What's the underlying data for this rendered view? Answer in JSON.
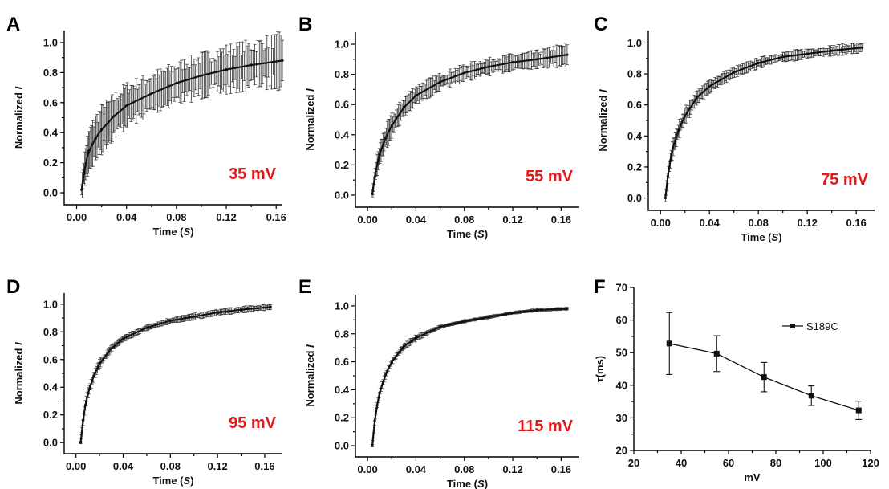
{
  "colors": {
    "axis": "#000000",
    "trace": "#111111",
    "errorbar": "#333333",
    "voltage_label": "#e0191b"
  },
  "chart_data": [
    {
      "panel": "A",
      "type": "line",
      "annotation": "35 mV",
      "xlabel_prefix": "Time (",
      "xlabel_unit": "S",
      "xlabel_suffix": ")",
      "ylabel_prefix": "Normalized ",
      "ylabel_var": "I",
      "xlim": [
        -0.01,
        0.165
      ],
      "ylim": [
        -0.08,
        1.08
      ],
      "xticks": [
        0.0,
        0.04,
        0.08,
        0.12,
        0.16
      ],
      "xticklabels": [
        "0.00",
        "0.04",
        "0.08",
        "0.12",
        "0.16"
      ],
      "yticks": [
        0.0,
        0.2,
        0.4,
        0.6,
        0.8,
        1.0
      ],
      "yticklabels": [
        "0.0",
        "0.2",
        "0.4",
        "0.6",
        "0.8",
        "1.0"
      ],
      "x": [
        0.004,
        0.006,
        0.008,
        0.01,
        0.015,
        0.02,
        0.03,
        0.04,
        0.06,
        0.08,
        0.1,
        0.12,
        0.14,
        0.165
      ],
      "y": [
        0.02,
        0.14,
        0.22,
        0.28,
        0.36,
        0.42,
        0.51,
        0.58,
        0.66,
        0.73,
        0.78,
        0.82,
        0.85,
        0.88
      ],
      "err": [
        0.06,
        0.1,
        0.12,
        0.13,
        0.14,
        0.14,
        0.13,
        0.13,
        0.12,
        0.12,
        0.13,
        0.14,
        0.14,
        0.16
      ]
    },
    {
      "panel": "B",
      "type": "line",
      "annotation": "55 mV",
      "xlabel_prefix": "Time (",
      "xlabel_unit": "S",
      "xlabel_suffix": ")",
      "ylabel_prefix": "Normalized ",
      "ylabel_var": "I",
      "xlim": [
        -0.01,
        0.175
      ],
      "ylim": [
        -0.08,
        1.08
      ],
      "xticks": [
        0.0,
        0.04,
        0.08,
        0.12,
        0.16
      ],
      "xticklabels": [
        "0.00",
        "0.04",
        "0.08",
        "0.12",
        "0.16"
      ],
      "yticks": [
        0.0,
        0.2,
        0.4,
        0.6,
        0.8,
        1.0
      ],
      "yticklabels": [
        "0.0",
        "0.2",
        "0.4",
        "0.6",
        "0.8",
        "1.0"
      ],
      "x": [
        0.004,
        0.006,
        0.008,
        0.01,
        0.015,
        0.02,
        0.03,
        0.04,
        0.06,
        0.08,
        0.1,
        0.12,
        0.14,
        0.165
      ],
      "y": [
        0.01,
        0.12,
        0.2,
        0.27,
        0.38,
        0.46,
        0.58,
        0.66,
        0.75,
        0.81,
        0.85,
        0.88,
        0.9,
        0.93
      ],
      "err": [
        0.03,
        0.05,
        0.06,
        0.07,
        0.07,
        0.07,
        0.06,
        0.06,
        0.05,
        0.05,
        0.05,
        0.05,
        0.05,
        0.07
      ]
    },
    {
      "panel": "C",
      "type": "line",
      "annotation": "75 mV",
      "xlabel_prefix": "Time (",
      "xlabel_unit": "S",
      "xlabel_suffix": ")",
      "ylabel_prefix": "Normalized ",
      "ylabel_var": "I",
      "xlim": [
        -0.01,
        0.175
      ],
      "ylim": [
        -0.08,
        1.08
      ],
      "xticks": [
        0.0,
        0.04,
        0.08,
        0.12,
        0.16
      ],
      "xticklabels": [
        "0.00",
        "0.04",
        "0.08",
        "0.12",
        "0.16"
      ],
      "yticks": [
        0.0,
        0.2,
        0.4,
        0.6,
        0.8,
        1.0
      ],
      "yticklabels": [
        "0.0",
        "0.2",
        "0.4",
        "0.6",
        "0.8",
        "1.0"
      ],
      "x": [
        0.004,
        0.006,
        0.008,
        0.01,
        0.015,
        0.02,
        0.03,
        0.04,
        0.06,
        0.08,
        0.1,
        0.12,
        0.14,
        0.165
      ],
      "y": [
        0.0,
        0.14,
        0.24,
        0.32,
        0.44,
        0.53,
        0.65,
        0.72,
        0.81,
        0.87,
        0.91,
        0.93,
        0.95,
        0.97
      ],
      "err": [
        0.02,
        0.04,
        0.05,
        0.05,
        0.05,
        0.05,
        0.04,
        0.04,
        0.03,
        0.03,
        0.03,
        0.03,
        0.03,
        0.03
      ]
    },
    {
      "panel": "D",
      "type": "line",
      "annotation": "95 mV",
      "xlabel_prefix": "Time (",
      "xlabel_unit": "S",
      "xlabel_suffix": ")",
      "ylabel_prefix": "Normalized ",
      "ylabel_var": "I",
      "xlim": [
        -0.01,
        0.175
      ],
      "ylim": [
        -0.08,
        1.08
      ],
      "xticks": [
        0.0,
        0.04,
        0.08,
        0.12,
        0.16
      ],
      "xticklabels": [
        "0.00",
        "0.04",
        "0.08",
        "0.12",
        "0.16"
      ],
      "yticks": [
        0.0,
        0.2,
        0.4,
        0.6,
        0.8,
        1.0
      ],
      "yticklabels": [
        "0.0",
        "0.2",
        "0.4",
        "0.6",
        "0.8",
        "1.0"
      ],
      "x": [
        0.004,
        0.006,
        0.008,
        0.01,
        0.015,
        0.02,
        0.03,
        0.04,
        0.06,
        0.08,
        0.1,
        0.12,
        0.14,
        0.165
      ],
      "y": [
        0.0,
        0.16,
        0.27,
        0.35,
        0.48,
        0.57,
        0.68,
        0.75,
        0.83,
        0.88,
        0.91,
        0.94,
        0.96,
        0.98
      ],
      "err": [
        0.01,
        0.02,
        0.03,
        0.03,
        0.03,
        0.03,
        0.02,
        0.02,
        0.02,
        0.02,
        0.02,
        0.02,
        0.02,
        0.02
      ]
    },
    {
      "panel": "E",
      "type": "line",
      "annotation": "115 mV",
      "xlabel_prefix": "Time (",
      "xlabel_unit": "S",
      "xlabel_suffix": ")",
      "ylabel_prefix": "Normalized ",
      "ylabel_var": "I",
      "xlim": [
        -0.01,
        0.175
      ],
      "ylim": [
        -0.08,
        1.08
      ],
      "xticks": [
        0.0,
        0.04,
        0.08,
        0.12,
        0.16
      ],
      "xticklabels": [
        "0.00",
        "0.04",
        "0.08",
        "0.12",
        "0.16"
      ],
      "yticks": [
        0.0,
        0.2,
        0.4,
        0.6,
        0.8,
        1.0
      ],
      "yticklabels": [
        "0.0",
        "0.2",
        "0.4",
        "0.6",
        "0.8",
        "1.0"
      ],
      "x": [
        0.004,
        0.006,
        0.008,
        0.01,
        0.015,
        0.02,
        0.03,
        0.04,
        0.06,
        0.08,
        0.1,
        0.12,
        0.14,
        0.165
      ],
      "y": [
        0.0,
        0.18,
        0.29,
        0.38,
        0.51,
        0.6,
        0.71,
        0.77,
        0.85,
        0.89,
        0.92,
        0.95,
        0.97,
        0.98
      ],
      "err": [
        0.01,
        0.02,
        0.02,
        0.02,
        0.02,
        0.02,
        0.02,
        0.02,
        0.01,
        0.01,
        0.01,
        0.01,
        0.01,
        0.01
      ]
    },
    {
      "panel": "F",
      "type": "line",
      "xlabel": "mV",
      "ylabel": "τ(ms)",
      "xlim": [
        20,
        120
      ],
      "ylim": [
        20,
        70
      ],
      "xticks": [
        20,
        40,
        60,
        80,
        100,
        120
      ],
      "xticklabels": [
        "20",
        "40",
        "60",
        "80",
        "100",
        "120"
      ],
      "yticks": [
        20,
        30,
        40,
        50,
        60,
        70
      ],
      "yticklabels": [
        "20",
        "30",
        "40",
        "50",
        "60",
        "70"
      ],
      "legend": "top-right",
      "series": [
        {
          "name": "S189C",
          "x": [
            35,
            55,
            75,
            95,
            115
          ],
          "y": [
            52.8,
            49.7,
            42.5,
            36.8,
            32.3
          ],
          "err": [
            9.5,
            5.5,
            4.5,
            3.0,
            2.8
          ]
        }
      ]
    }
  ]
}
